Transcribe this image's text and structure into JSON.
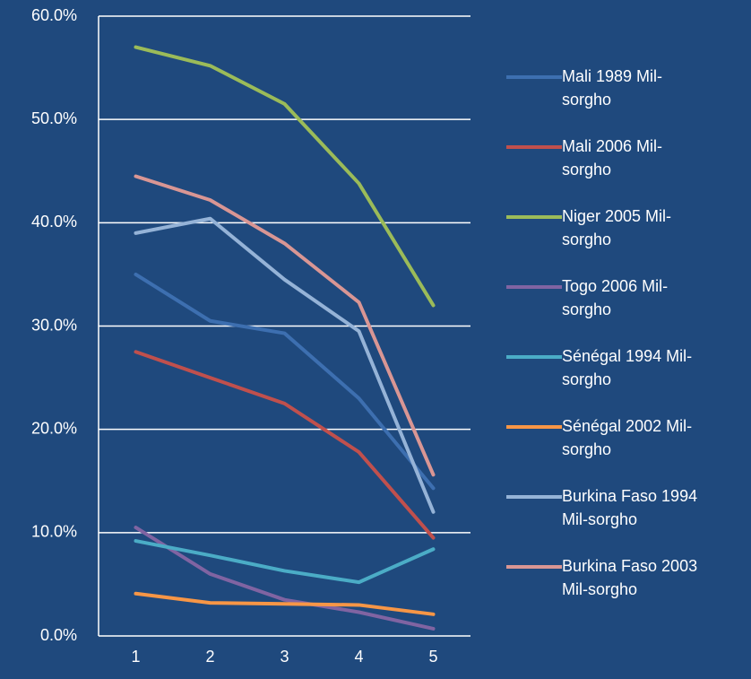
{
  "chart_data": {
    "type": "line",
    "categories": [
      "1",
      "2",
      "3",
      "4",
      "5"
    ],
    "series": [
      {
        "name": "Mali 1989 Mil-sorgho",
        "color": "#3d6fb0",
        "values": [
          35,
          30.5,
          29.3,
          23,
          14.3
        ]
      },
      {
        "name": "Mali 2006 Mil-sorgho",
        "color": "#c0504d",
        "values": [
          27.5,
          25,
          22.5,
          17.8,
          9.5
        ]
      },
      {
        "name": "Niger 2005 Mil-sorgho",
        "color": "#9bbb59",
        "values": [
          57,
          55.2,
          51.5,
          43.8,
          32
        ]
      },
      {
        "name": "Togo 2006 Mil-sorgho",
        "color": "#8064a2",
        "values": [
          10.5,
          6,
          3.5,
          2.3,
          0.7
        ]
      },
      {
        "name": "Sénégal 1994 Mil-sorgho",
        "color": "#4bacc6",
        "values": [
          9.2,
          7.8,
          6.3,
          5.2,
          8.4
        ]
      },
      {
        "name": "Sénégal 2002 Mil-sorgho",
        "color": "#f79646",
        "values": [
          4.1,
          3.2,
          3.1,
          3.0,
          2.1
        ]
      },
      {
        "name": "Burkina Faso 1994 Mil-sorgho",
        "color": "#95b3d7",
        "values": [
          39,
          40.4,
          34.5,
          29.5,
          12
        ]
      },
      {
        "name": "Burkina Faso 2003 Mil-sorgho",
        "color": "#d99694",
        "values": [
          44.5,
          42.2,
          38,
          32.3,
          15.6
        ]
      }
    ],
    "ylim": [
      0,
      60
    ],
    "yticks": [
      {
        "value": 0,
        "label": "0.0%"
      },
      {
        "value": 10,
        "label": "10.0%"
      },
      {
        "value": 20,
        "label": "20.0%"
      },
      {
        "value": 30,
        "label": "30.0%"
      },
      {
        "value": 40,
        "label": "40.0%"
      },
      {
        "value": 50,
        "label": "50.0%"
      },
      {
        "value": 60,
        "label": "60.0%"
      }
    ],
    "grid": true,
    "legend": "right"
  }
}
